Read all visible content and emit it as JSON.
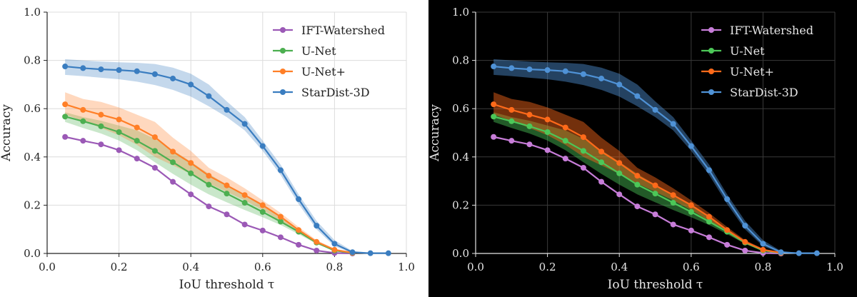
{
  "chart_data": [
    {
      "type": "line",
      "theme": "light",
      "background": "#ffffff",
      "foreground": "#222222",
      "grid_color": "#dcdcdc",
      "xlabel": "IoU threshold τ",
      "ylabel": "Accuracy",
      "xlim": [
        0.0,
        1.0
      ],
      "ylim": [
        0.0,
        1.0
      ],
      "xticks": [
        "0.0",
        "0.2",
        "0.4",
        "0.6",
        "0.8",
        "1.0"
      ],
      "yticks": [
        "0.0",
        "0.2",
        "0.4",
        "0.6",
        "0.8",
        "1.0"
      ],
      "grid": true,
      "legend_position": "top-right",
      "x": [
        0.05,
        0.1,
        0.15,
        0.2,
        0.25,
        0.3,
        0.35,
        0.4,
        0.45,
        0.5,
        0.55,
        0.6,
        0.65,
        0.7,
        0.75,
        0.8,
        0.85,
        0.9,
        0.95
      ],
      "series": [
        {
          "name": "IFT-Watershed",
          "color": "#9b59b6",
          "values": [
            0.483,
            0.467,
            0.452,
            0.428,
            0.393,
            0.355,
            0.297,
            0.245,
            0.195,
            0.162,
            0.12,
            0.095,
            0.067,
            0.036,
            0.012,
            0.002,
            0.0,
            null,
            null
          ],
          "lower": null,
          "upper": null
        },
        {
          "name": "U-Net",
          "color": "#4caf50",
          "values": [
            0.567,
            0.548,
            0.527,
            0.503,
            0.467,
            0.425,
            0.378,
            0.332,
            0.285,
            0.248,
            0.21,
            0.172,
            0.132,
            0.09,
            0.045,
            0.012,
            0.002,
            null,
            null
          ],
          "lower": [
            0.545,
            0.52,
            0.497,
            0.468,
            0.428,
            0.378,
            0.33,
            0.285,
            0.245,
            0.212,
            0.18,
            0.15,
            0.118,
            0.08,
            0.04,
            0.01,
            0.0,
            null,
            null
          ],
          "upper": [
            0.585,
            0.565,
            0.55,
            0.53,
            0.51,
            0.475,
            0.428,
            0.38,
            0.33,
            0.285,
            0.245,
            0.205,
            0.155,
            0.1,
            0.05,
            0.016,
            0.004,
            null,
            null
          ]
        },
        {
          "name": "U-Net+",
          "color": "#ff7f27",
          "values": [
            0.618,
            0.595,
            0.575,
            0.555,
            0.522,
            0.482,
            0.422,
            0.375,
            0.322,
            0.282,
            0.242,
            0.2,
            0.152,
            0.097,
            0.048,
            0.015,
            0.003,
            null,
            null
          ],
          "lower": [
            0.575,
            0.55,
            0.52,
            0.49,
            0.45,
            0.4,
            0.365,
            0.33,
            0.29,
            0.255,
            0.22,
            0.18,
            0.135,
            0.085,
            0.04,
            0.01,
            0.0,
            null,
            null
          ],
          "upper": [
            0.668,
            0.64,
            0.628,
            0.605,
            0.575,
            0.545,
            0.48,
            0.425,
            0.355,
            0.315,
            0.27,
            0.22,
            0.168,
            0.11,
            0.055,
            0.02,
            0.005,
            null,
            null
          ]
        },
        {
          "name": "StarDist-3D",
          "color": "#3a7dc0",
          "values": [
            0.775,
            0.768,
            0.763,
            0.76,
            0.755,
            0.743,
            0.725,
            0.7,
            0.652,
            0.595,
            0.537,
            0.445,
            0.345,
            0.225,
            0.115,
            0.04,
            0.005,
            0.001,
            0.001
          ],
          "lower": [
            0.74,
            0.735,
            0.728,
            0.722,
            0.712,
            0.698,
            0.678,
            0.65,
            0.61,
            0.565,
            0.51,
            0.425,
            0.325,
            0.205,
            0.1,
            0.03,
            0.002,
            0.0,
            0.0
          ],
          "upper": [
            0.805,
            0.8,
            0.795,
            0.792,
            0.79,
            0.785,
            0.77,
            0.745,
            0.7,
            0.63,
            0.565,
            0.468,
            0.368,
            0.245,
            0.135,
            0.055,
            0.01,
            0.003,
            0.002
          ]
        }
      ]
    },
    {
      "type": "line",
      "theme": "dark",
      "background": "#000000",
      "foreground": "#e6e6e6",
      "grid_color": "#3a3a3a",
      "xlabel": "IoU threshold τ",
      "ylabel": "Accuracy",
      "xlim": [
        0.0,
        1.0
      ],
      "ylim": [
        0.0,
        1.0
      ],
      "xticks": [
        "0.0",
        "0.2",
        "0.4",
        "0.6",
        "0.8",
        "1.0"
      ],
      "yticks": [
        "0.0",
        "0.2",
        "0.4",
        "0.6",
        "0.8",
        "1.0"
      ],
      "grid": true,
      "legend_position": "top-right",
      "x": [
        0.05,
        0.1,
        0.15,
        0.2,
        0.25,
        0.3,
        0.35,
        0.4,
        0.45,
        0.5,
        0.55,
        0.6,
        0.65,
        0.7,
        0.75,
        0.8,
        0.85,
        0.9,
        0.95
      ],
      "series": [
        {
          "name": "IFT-Watershed",
          "color": "#c77dd8",
          "values": [
            0.483,
            0.467,
            0.452,
            0.428,
            0.393,
            0.355,
            0.297,
            0.245,
            0.195,
            0.162,
            0.12,
            0.095,
            0.067,
            0.036,
            0.012,
            0.002,
            0.0,
            null,
            null
          ],
          "lower": null,
          "upper": null
        },
        {
          "name": "U-Net",
          "color": "#4cc758",
          "values": [
            0.567,
            0.548,
            0.527,
            0.503,
            0.467,
            0.425,
            0.378,
            0.332,
            0.285,
            0.248,
            0.21,
            0.172,
            0.132,
            0.09,
            0.045,
            0.012,
            0.002,
            null,
            null
          ],
          "lower": [
            0.545,
            0.52,
            0.497,
            0.468,
            0.428,
            0.378,
            0.33,
            0.285,
            0.245,
            0.212,
            0.18,
            0.15,
            0.118,
            0.08,
            0.04,
            0.01,
            0.0,
            null,
            null
          ],
          "upper": [
            0.585,
            0.565,
            0.55,
            0.53,
            0.51,
            0.475,
            0.428,
            0.38,
            0.33,
            0.285,
            0.245,
            0.205,
            0.155,
            0.1,
            0.05,
            0.016,
            0.004,
            null,
            null
          ]
        },
        {
          "name": "U-Net+",
          "color": "#ff6a1a",
          "values": [
            0.618,
            0.595,
            0.575,
            0.555,
            0.522,
            0.482,
            0.422,
            0.375,
            0.322,
            0.282,
            0.242,
            0.2,
            0.152,
            0.097,
            0.048,
            0.015,
            0.003,
            null,
            null
          ],
          "lower": [
            0.575,
            0.55,
            0.52,
            0.49,
            0.45,
            0.4,
            0.365,
            0.33,
            0.29,
            0.255,
            0.22,
            0.18,
            0.135,
            0.085,
            0.04,
            0.01,
            0.0,
            null,
            null
          ],
          "upper": [
            0.668,
            0.64,
            0.628,
            0.605,
            0.575,
            0.545,
            0.48,
            0.425,
            0.355,
            0.315,
            0.27,
            0.22,
            0.168,
            0.11,
            0.055,
            0.02,
            0.005,
            null,
            null
          ]
        },
        {
          "name": "StarDist-3D",
          "color": "#4f92d6",
          "values": [
            0.775,
            0.768,
            0.763,
            0.76,
            0.755,
            0.743,
            0.725,
            0.7,
            0.652,
            0.595,
            0.537,
            0.445,
            0.345,
            0.225,
            0.115,
            0.04,
            0.005,
            0.001,
            0.001
          ],
          "lower": [
            0.74,
            0.735,
            0.728,
            0.722,
            0.712,
            0.698,
            0.678,
            0.65,
            0.61,
            0.565,
            0.51,
            0.425,
            0.325,
            0.205,
            0.1,
            0.03,
            0.002,
            0.0,
            0.0
          ],
          "upper": [
            0.805,
            0.8,
            0.795,
            0.792,
            0.79,
            0.785,
            0.77,
            0.745,
            0.7,
            0.63,
            0.565,
            0.468,
            0.368,
            0.245,
            0.135,
            0.055,
            0.01,
            0.003,
            0.002
          ]
        }
      ]
    }
  ]
}
